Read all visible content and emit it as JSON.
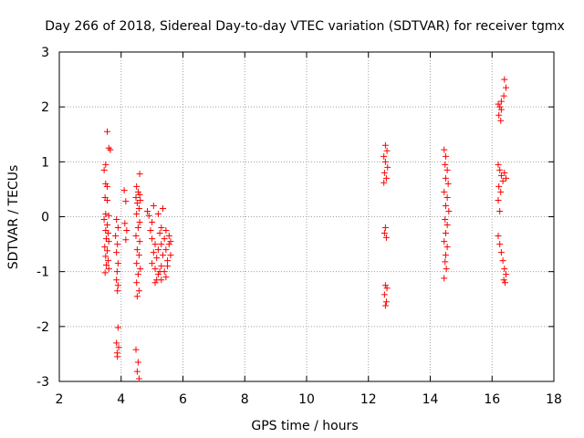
{
  "chart_data": {
    "type": "scatter",
    "title": "Day 266 of 2018, Sidereal Day-to-day VTEC variation (SDTVAR) for receiver tgmx",
    "xlabel": "GPS time / hours",
    "ylabel": "SDTVAR / TECUs",
    "xlim": [
      2,
      18
    ],
    "ylim": [
      -3,
      3
    ],
    "xticks": [
      "2",
      "4",
      "6",
      "8",
      "10",
      "12",
      "14",
      "16",
      "18"
    ],
    "yticks": [
      "-3",
      "-2",
      "-1",
      "0",
      "1",
      "2",
      "3"
    ],
    "grid": true,
    "marker": "+",
    "series": [
      {
        "name": "SDTVAR",
        "color": "#ff0000",
        "points": [
          [
            3.55,
            1.55
          ],
          [
            3.6,
            1.25
          ],
          [
            3.65,
            1.22
          ],
          [
            3.5,
            0.95
          ],
          [
            3.45,
            0.85
          ],
          [
            3.5,
            0.6
          ],
          [
            3.55,
            0.55
          ],
          [
            3.48,
            0.35
          ],
          [
            3.55,
            0.3
          ],
          [
            3.5,
            0.05
          ],
          [
            3.6,
            0.02
          ],
          [
            3.45,
            -0.05
          ],
          [
            3.55,
            -0.15
          ],
          [
            3.5,
            -0.25
          ],
          [
            3.58,
            -0.3
          ],
          [
            3.52,
            -0.4
          ],
          [
            3.6,
            -0.45
          ],
          [
            3.47,
            -0.55
          ],
          [
            3.55,
            -0.62
          ],
          [
            3.5,
            -0.72
          ],
          [
            3.58,
            -0.8
          ],
          [
            3.52,
            -0.88
          ],
          [
            3.6,
            -0.95
          ],
          [
            3.48,
            -1.02
          ],
          [
            3.85,
            -0.05
          ],
          [
            3.9,
            -0.2
          ],
          [
            3.82,
            -0.35
          ],
          [
            3.88,
            -0.5
          ],
          [
            3.85,
            -0.65
          ],
          [
            3.9,
            -0.85
          ],
          [
            3.87,
            -1.0
          ],
          [
            3.85,
            -1.15
          ],
          [
            3.9,
            -1.25
          ],
          [
            3.88,
            -1.35
          ],
          [
            3.9,
            -2.02
          ],
          [
            3.85,
            -2.3
          ],
          [
            3.92,
            -2.38
          ],
          [
            3.87,
            -2.48
          ],
          [
            3.88,
            -2.55
          ],
          [
            4.1,
            0.48
          ],
          [
            4.15,
            0.28
          ],
          [
            4.12,
            -0.12
          ],
          [
            4.18,
            -0.25
          ],
          [
            4.15,
            -0.42
          ],
          [
            4.5,
            0.55
          ],
          [
            4.55,
            0.45
          ],
          [
            4.48,
            0.35
          ],
          [
            4.6,
            0.4
          ],
          [
            4.52,
            0.25
          ],
          [
            4.62,
            0.3
          ],
          [
            4.58,
            0.15
          ],
          [
            4.5,
            0.05
          ],
          [
            4.6,
            -0.1
          ],
          [
            4.55,
            -0.2
          ],
          [
            4.48,
            -0.35
          ],
          [
            4.6,
            -0.45
          ],
          [
            4.52,
            -0.6
          ],
          [
            4.58,
            -0.7
          ],
          [
            4.5,
            -0.85
          ],
          [
            4.62,
            -0.95
          ],
          [
            4.55,
            -1.05
          ],
          [
            4.5,
            -1.2
          ],
          [
            4.58,
            -1.35
          ],
          [
            4.52,
            -1.45
          ],
          [
            4.6,
            0.78
          ],
          [
            4.48,
            -2.42
          ],
          [
            4.55,
            -2.65
          ],
          [
            4.52,
            -2.82
          ],
          [
            4.58,
            -2.95
          ],
          [
            4.85,
            0.1
          ],
          [
            4.9,
            0.02
          ],
          [
            5.0,
            -0.1
          ],
          [
            5.05,
            0.2
          ],
          [
            4.95,
            -0.25
          ],
          [
            5.0,
            -0.4
          ],
          [
            5.1,
            -0.5
          ],
          [
            5.05,
            -0.65
          ],
          [
            5.15,
            -0.75
          ],
          [
            5.0,
            -0.85
          ],
          [
            5.1,
            -0.95
          ],
          [
            5.2,
            -1.05
          ],
          [
            5.15,
            -1.15
          ],
          [
            5.25,
            -0.3
          ],
          [
            5.3,
            -0.5
          ],
          [
            5.2,
            -0.6
          ],
          [
            5.35,
            -0.7
          ],
          [
            5.3,
            -0.9
          ],
          [
            5.25,
            -1.0
          ],
          [
            5.4,
            -0.4
          ],
          [
            5.45,
            -0.6
          ],
          [
            5.5,
            -0.8
          ],
          [
            5.4,
            -1.0
          ],
          [
            5.55,
            -0.5
          ],
          [
            5.6,
            -0.7
          ],
          [
            5.5,
            -0.9
          ],
          [
            5.35,
            0.15
          ],
          [
            5.2,
            0.05
          ],
          [
            5.3,
            -0.2
          ],
          [
            5.45,
            -0.25
          ],
          [
            5.55,
            -0.35
          ],
          [
            5.6,
            -0.45
          ],
          [
            5.1,
            -1.2
          ],
          [
            5.3,
            -1.15
          ],
          [
            5.45,
            -1.1
          ],
          [
            12.55,
            1.3
          ],
          [
            12.6,
            1.2
          ],
          [
            12.5,
            1.1
          ],
          [
            12.55,
            1.0
          ],
          [
            12.62,
            0.9
          ],
          [
            12.52,
            0.8
          ],
          [
            12.58,
            0.7
          ],
          [
            12.5,
            0.62
          ],
          [
            12.55,
            -0.2
          ],
          [
            12.52,
            -0.3
          ],
          [
            12.58,
            -0.38
          ],
          [
            12.55,
            -1.25
          ],
          [
            12.6,
            -1.3
          ],
          [
            12.52,
            -1.42
          ],
          [
            12.58,
            -1.55
          ],
          [
            12.55,
            -1.62
          ],
          [
            14.45,
            1.22
          ],
          [
            14.5,
            1.1
          ],
          [
            14.48,
            0.95
          ],
          [
            14.55,
            0.85
          ],
          [
            14.5,
            0.7
          ],
          [
            14.58,
            0.6
          ],
          [
            14.45,
            0.45
          ],
          [
            14.55,
            0.35
          ],
          [
            14.5,
            0.2
          ],
          [
            14.6,
            0.1
          ],
          [
            14.48,
            -0.05
          ],
          [
            14.55,
            -0.15
          ],
          [
            14.5,
            -0.3
          ],
          [
            14.45,
            -0.45
          ],
          [
            14.55,
            -0.55
          ],
          [
            14.5,
            -0.7
          ],
          [
            14.48,
            -0.82
          ],
          [
            14.52,
            -0.95
          ],
          [
            14.45,
            -1.12
          ],
          [
            16.2,
            2.05
          ],
          [
            16.25,
            2.0
          ],
          [
            16.3,
            1.95
          ],
          [
            16.22,
            1.85
          ],
          [
            16.28,
            1.75
          ],
          [
            16.4,
            2.5
          ],
          [
            16.45,
            2.35
          ],
          [
            16.38,
            2.2
          ],
          [
            16.3,
            2.1
          ],
          [
            16.2,
            0.95
          ],
          [
            16.25,
            0.85
          ],
          [
            16.3,
            0.75
          ],
          [
            16.35,
            0.65
          ],
          [
            16.4,
            0.8
          ],
          [
            16.45,
            0.7
          ],
          [
            16.22,
            0.55
          ],
          [
            16.28,
            0.45
          ],
          [
            16.2,
            0.3
          ],
          [
            16.25,
            0.1
          ],
          [
            16.2,
            -0.35
          ],
          [
            16.25,
            -0.5
          ],
          [
            16.3,
            -0.65
          ],
          [
            16.35,
            -0.8
          ],
          [
            16.4,
            -0.95
          ],
          [
            16.45,
            -1.05
          ],
          [
            16.38,
            -1.15
          ],
          [
            16.42,
            -1.2
          ]
        ]
      }
    ]
  }
}
